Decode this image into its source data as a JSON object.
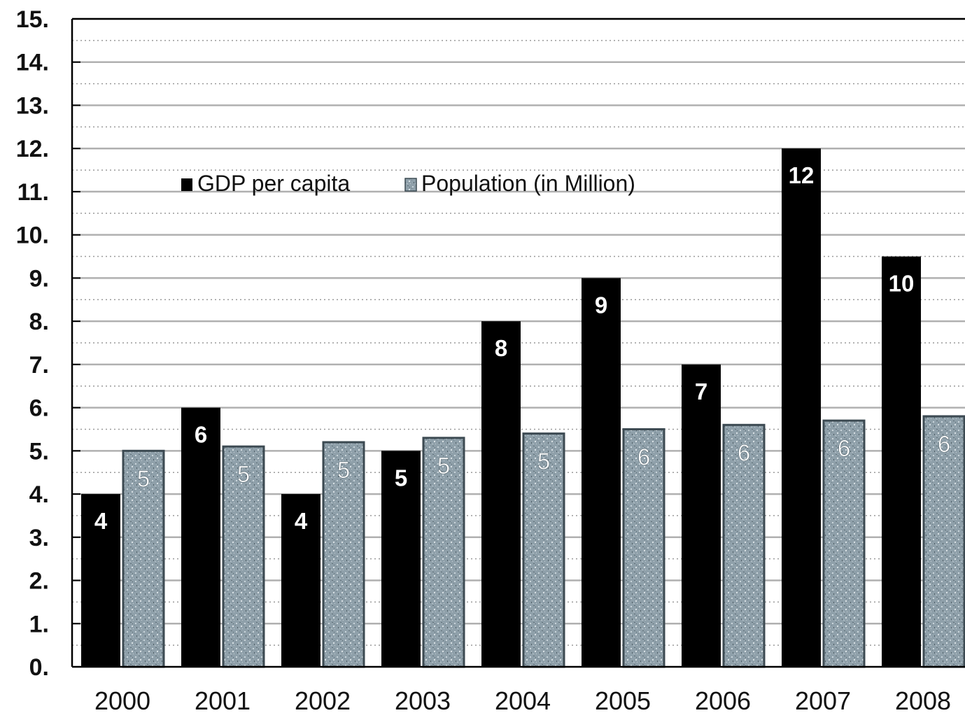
{
  "chart_data": {
    "type": "bar",
    "categories": [
      "2000",
      "2001",
      "2002",
      "2003",
      "2004",
      "2005",
      "2006",
      "2007",
      "2008"
    ],
    "series": [
      {
        "name": "GDP per capita",
        "values": [
          4,
          6,
          4,
          5,
          8,
          9,
          7,
          12,
          9.5
        ],
        "labels": [
          "4",
          "6",
          "4",
          "5",
          "8",
          "9",
          "7",
          "12",
          "10"
        ]
      },
      {
        "name": "Population (in Million)",
        "values": [
          5.0,
          5.1,
          5.2,
          5.3,
          5.4,
          5.5,
          5.6,
          5.7,
          5.8
        ],
        "labels": [
          "5",
          "5",
          "5",
          "5",
          "5",
          "6",
          "6",
          "6",
          "6"
        ]
      }
    ],
    "ylim": [
      0,
      15
    ],
    "yticks": [
      "0.",
      "1.",
      "2.",
      "3.",
      "4.",
      "5.",
      "6.",
      "7.",
      "8.",
      "9.",
      "10.",
      "11.",
      "12.",
      "13.",
      "14.",
      "15."
    ],
    "title": "",
    "xlabel": "",
    "ylabel": "",
    "grid": true,
    "legend_position": "top-left",
    "colors": {
      "gdp": "#000000",
      "population": "#8fa0aa",
      "population_border": "#3c4a52",
      "grid": "#b0b0b0"
    }
  }
}
